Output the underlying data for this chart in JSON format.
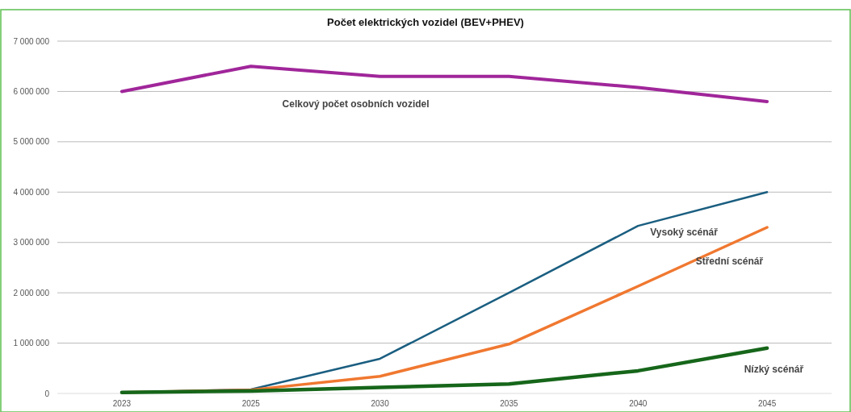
{
  "chart_data": {
    "type": "line",
    "title": "Počet elektrických vozidel (BEV+PHEV)",
    "categories": [
      "2023",
      "2025",
      "2030",
      "2035",
      "2040",
      "2045"
    ],
    "series": [
      {
        "name": "Celkový počet osobních vozidel",
        "color": "#a0269a",
        "values": [
          6000000,
          6500000,
          6300000,
          6300000,
          6080000,
          5800000
        ]
      },
      {
        "name": "Vysoký scénář",
        "color": "#1a5e80",
        "values": [
          20000,
          80000,
          690000,
          2000000,
          3330000,
          4000000
        ]
      },
      {
        "name": "Střední scénář",
        "color": "#f07830",
        "values": [
          20000,
          70000,
          340000,
          980000,
          2130000,
          3300000
        ]
      },
      {
        "name": "Nízký scénář",
        "color": "#16661a",
        "values": [
          20000,
          50000,
          120000,
          190000,
          450000,
          900000
        ]
      }
    ],
    "ylim": [
      0,
      7000000
    ],
    "yticks": [
      0,
      {
        "value": 1000000,
        "label": "1 000 000"
      },
      {
        "value": 2000000,
        "label": "2 000 000"
      },
      {
        "value": 3000000,
        "label": "3 000 000"
      },
      {
        "value": 4000000,
        "label": "4 000 000"
      },
      {
        "value": 5000000,
        "label": "5 000 000"
      },
      {
        "value": 6000000,
        "label": "6 000 000"
      },
      {
        "value": 7000000,
        "label": "7 000 000"
      }
    ],
    "grid": "y",
    "legend": false,
    "marker": "none",
    "line_style": "solid"
  }
}
